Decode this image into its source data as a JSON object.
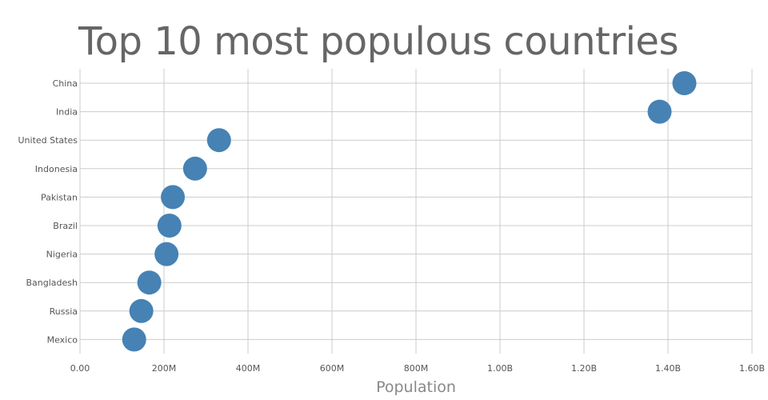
{
  "chart_data": {
    "type": "scatter",
    "title": "Top 10 most populous countries",
    "xlabel": "Population",
    "ylabel": "",
    "xlim": [
      0,
      1600000000
    ],
    "x_ticks": [
      {
        "value": 0,
        "label": "0.00"
      },
      {
        "value": 200000000,
        "label": "200M"
      },
      {
        "value": 400000000,
        "label": "400M"
      },
      {
        "value": 600000000,
        "label": "600M"
      },
      {
        "value": 800000000,
        "label": "800M"
      },
      {
        "value": 1000000000,
        "label": "1.00B"
      },
      {
        "value": 1200000000,
        "label": "1.20B"
      },
      {
        "value": 1400000000,
        "label": "1.40B"
      },
      {
        "value": 1600000000,
        "label": "1.60B"
      }
    ],
    "categories": [
      "China",
      "India",
      "United States",
      "Indonesia",
      "Pakistan",
      "Brazil",
      "Nigeria",
      "Bangladesh",
      "Russia",
      "Mexico"
    ],
    "values": [
      1439000000,
      1380000000,
      331000000,
      274000000,
      221000000,
      213000000,
      206000000,
      165000000,
      146000000,
      129000000
    ],
    "marker_color": "#4682b4",
    "grid": true
  }
}
